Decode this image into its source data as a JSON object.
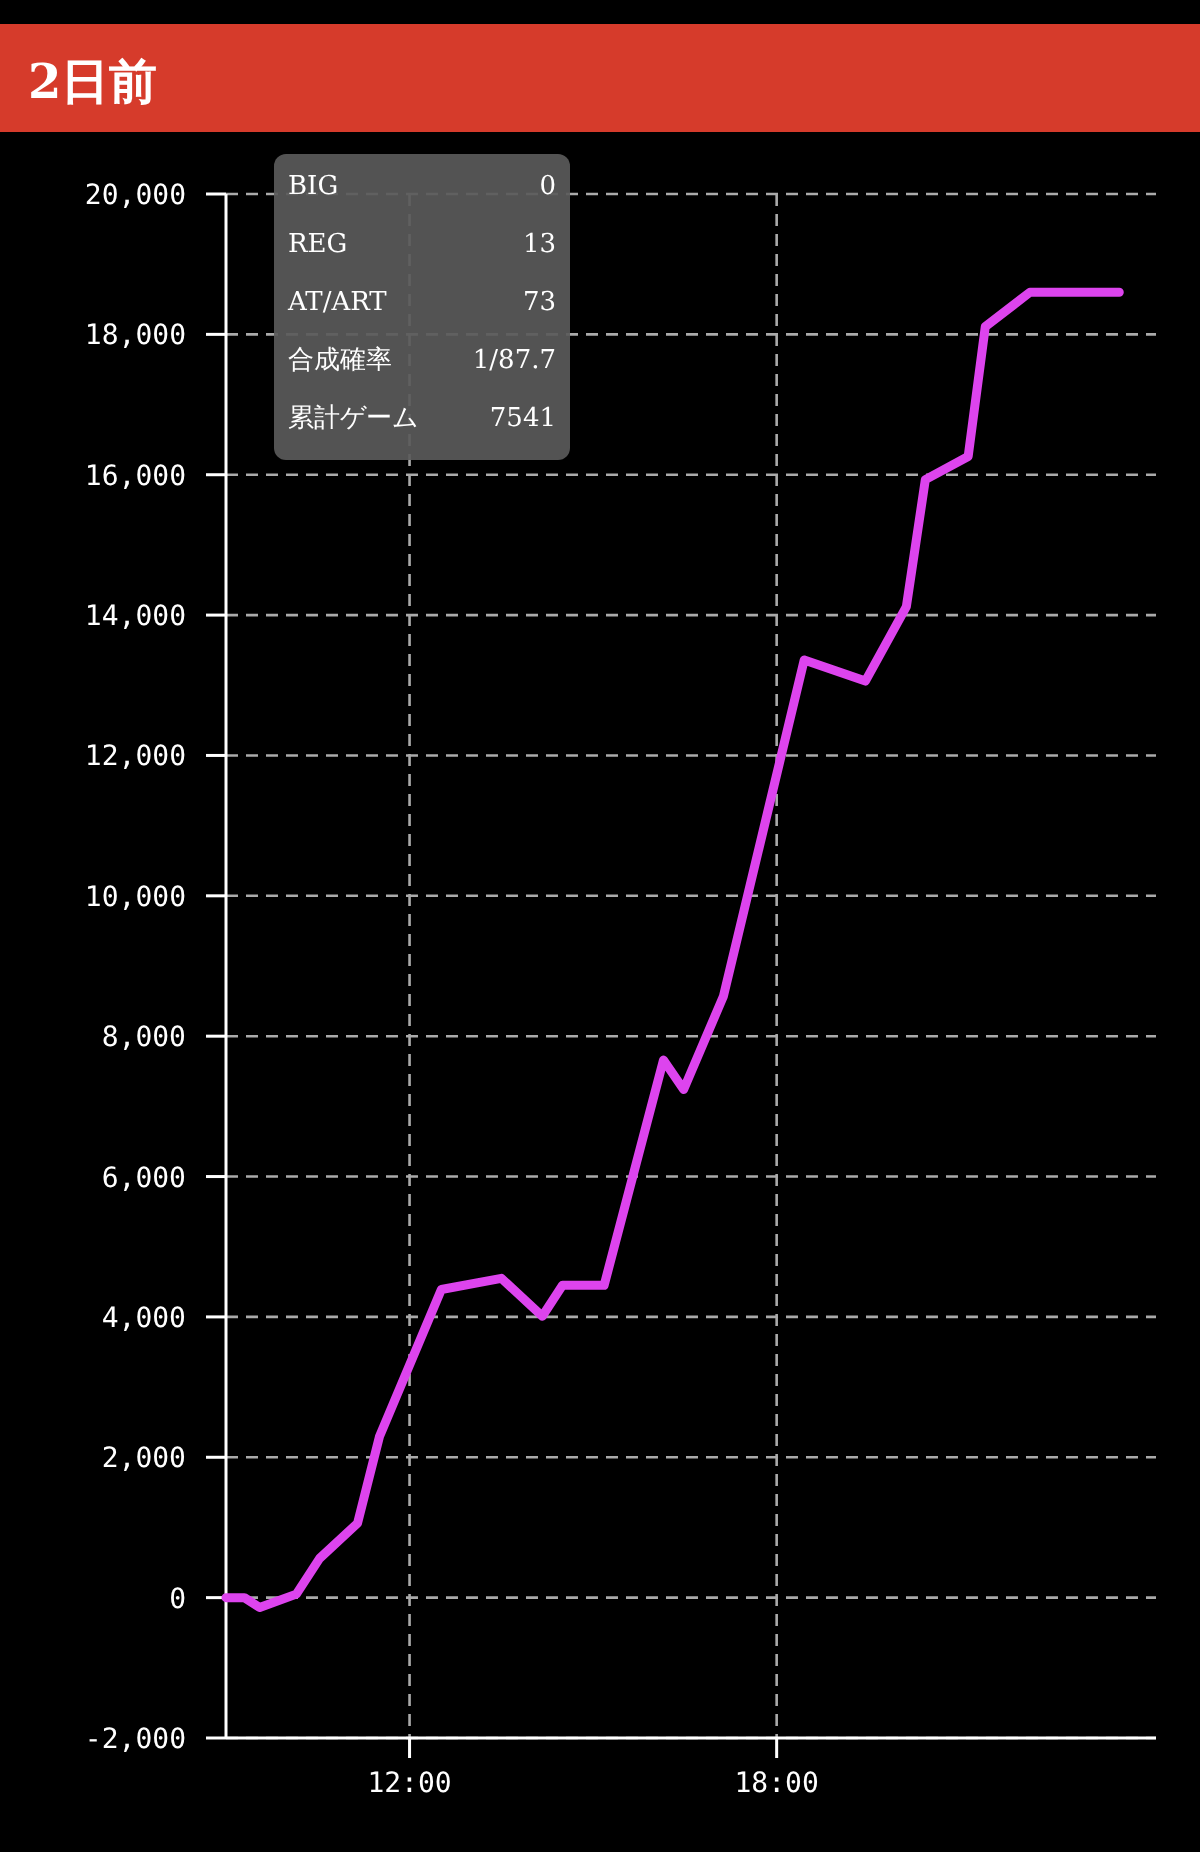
{
  "chart_data": {
    "type": "line",
    "title": "2日前",
    "x": [
      9.0,
      9.3,
      9.55,
      10.15,
      10.53,
      11.15,
      11.51,
      12.52,
      13.5,
      14.17,
      14.5,
      15.18,
      16.15,
      16.48,
      17.13,
      18.45,
      19.45,
      20.12,
      20.43,
      21.13,
      21.41,
      22.14,
      23.6
    ],
    "series": [
      {
        "color": "#dd44ee",
        "values": [
          0,
          0,
          -140,
          50,
          560,
          1060,
          2300,
          4390,
          4550,
          4010,
          4450,
          4450,
          7660,
          7240,
          8570,
          13360,
          13060,
          14120,
          15930,
          16260,
          18110,
          18600,
          18600
        ]
      }
    ],
    "xlim": [
      9,
      24.2
    ],
    "xticks": [
      {
        "value": 12,
        "label": "12:00"
      },
      {
        "value": 18,
        "label": "18:00"
      }
    ],
    "ylim": [
      -2000,
      20000
    ],
    "yticks": [
      {
        "value": -2000,
        "label": "-2,000"
      },
      {
        "value": 0,
        "label": "0"
      },
      {
        "value": 2000,
        "label": "2,000"
      },
      {
        "value": 4000,
        "label": "4,000"
      },
      {
        "value": 6000,
        "label": "6,000"
      },
      {
        "value": 8000,
        "label": "8,000"
      },
      {
        "value": 10000,
        "label": "10,000"
      },
      {
        "value": 12000,
        "label": "12,000"
      },
      {
        "value": 14000,
        "label": "14,000"
      },
      {
        "value": 16000,
        "label": "16,000"
      },
      {
        "value": 18000,
        "label": "18,000"
      },
      {
        "value": 20000,
        "label": "20,000"
      }
    ],
    "grid": true,
    "marker": "none",
    "line_style": "solid",
    "annotations": [
      "BIG",
      "0",
      "REG",
      "13",
      "AT/ART",
      "73",
      "合成確率",
      "1/87.7",
      "累計ゲーム",
      "7541"
    ]
  }
}
